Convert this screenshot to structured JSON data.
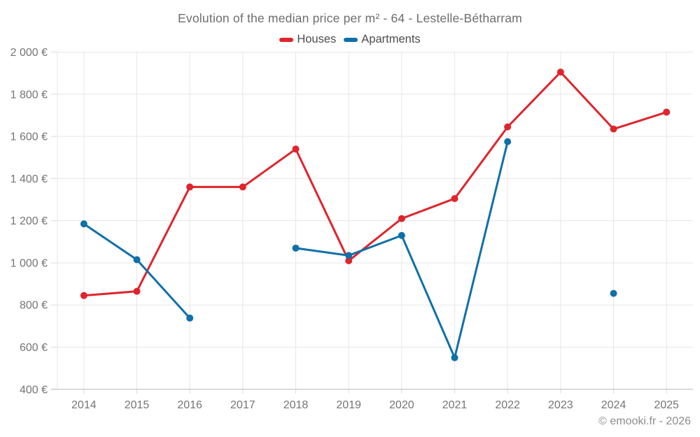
{
  "chart_data": {
    "type": "line",
    "title": "Evolution of the median price per m² - 64 - Lestelle-Bétharram",
    "categories": [
      "2014",
      "2015",
      "2016",
      "2017",
      "2018",
      "2019",
      "2020",
      "2021",
      "2022",
      "2023",
      "2024",
      "2025"
    ],
    "series": [
      {
        "name": "Houses",
        "color": "#e0242c",
        "values": [
          845,
          865,
          1360,
          1360,
          1540,
          1010,
          1210,
          1305,
          1645,
          1905,
          1635,
          1715
        ]
      },
      {
        "name": "Apartments",
        "color": "#1070a8",
        "values": [
          1185,
          1015,
          738,
          null,
          1070,
          1035,
          1130,
          550,
          1575,
          null,
          855,
          null
        ]
      }
    ],
    "ylim": [
      400,
      2000
    ],
    "ytick_step": 200,
    "y_unit": "€",
    "grid": true,
    "legend_position": "top"
  },
  "watermark": "© emooki.fr - 2026"
}
